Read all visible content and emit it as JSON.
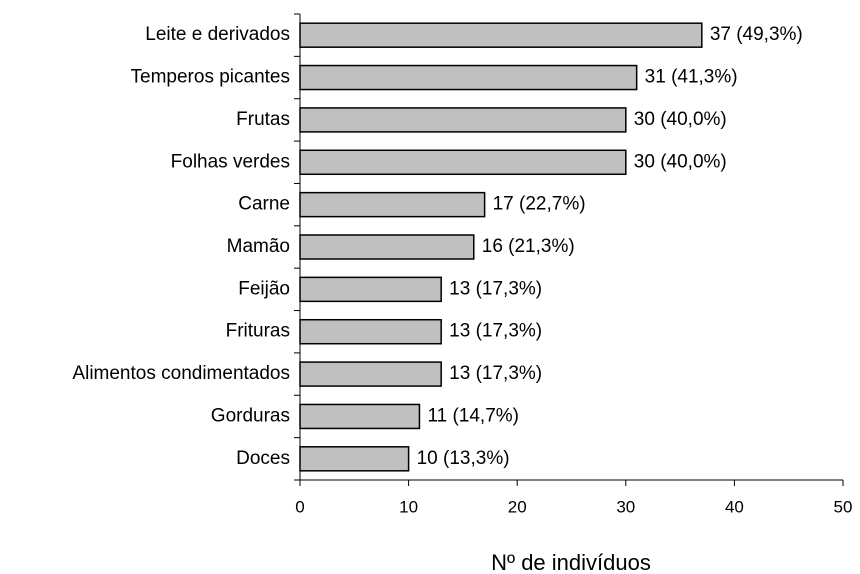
{
  "chart_data": {
    "type": "bar",
    "orientation": "horizontal",
    "categories": [
      "Leite e derivados",
      "Temperos picantes",
      "Frutas",
      "Folhas verdes",
      "Carne",
      "Mamão",
      "Feijão",
      "Frituras",
      "Alimentos condimentados",
      "Gorduras",
      "Doces"
    ],
    "values": [
      37,
      31,
      30,
      30,
      17,
      16,
      13,
      13,
      13,
      11,
      10
    ],
    "value_labels": [
      "37 (49,3%)",
      "31 (41,3%)",
      "30 (40,0%)",
      "30 (40,0%)",
      "17 (22,7%)",
      "16 (21,3%)",
      "13 (17,3%)",
      "13 (17,3%)",
      "13 (17,3%)",
      "11 (14,7%)",
      "10 (13,3%)"
    ],
    "color": "#c0c0c0",
    "xlim": [
      0,
      50
    ],
    "xticks": [
      0,
      10,
      20,
      30,
      40,
      50
    ],
    "xlabel": "Nº de indivíduos",
    "grid": false
  }
}
